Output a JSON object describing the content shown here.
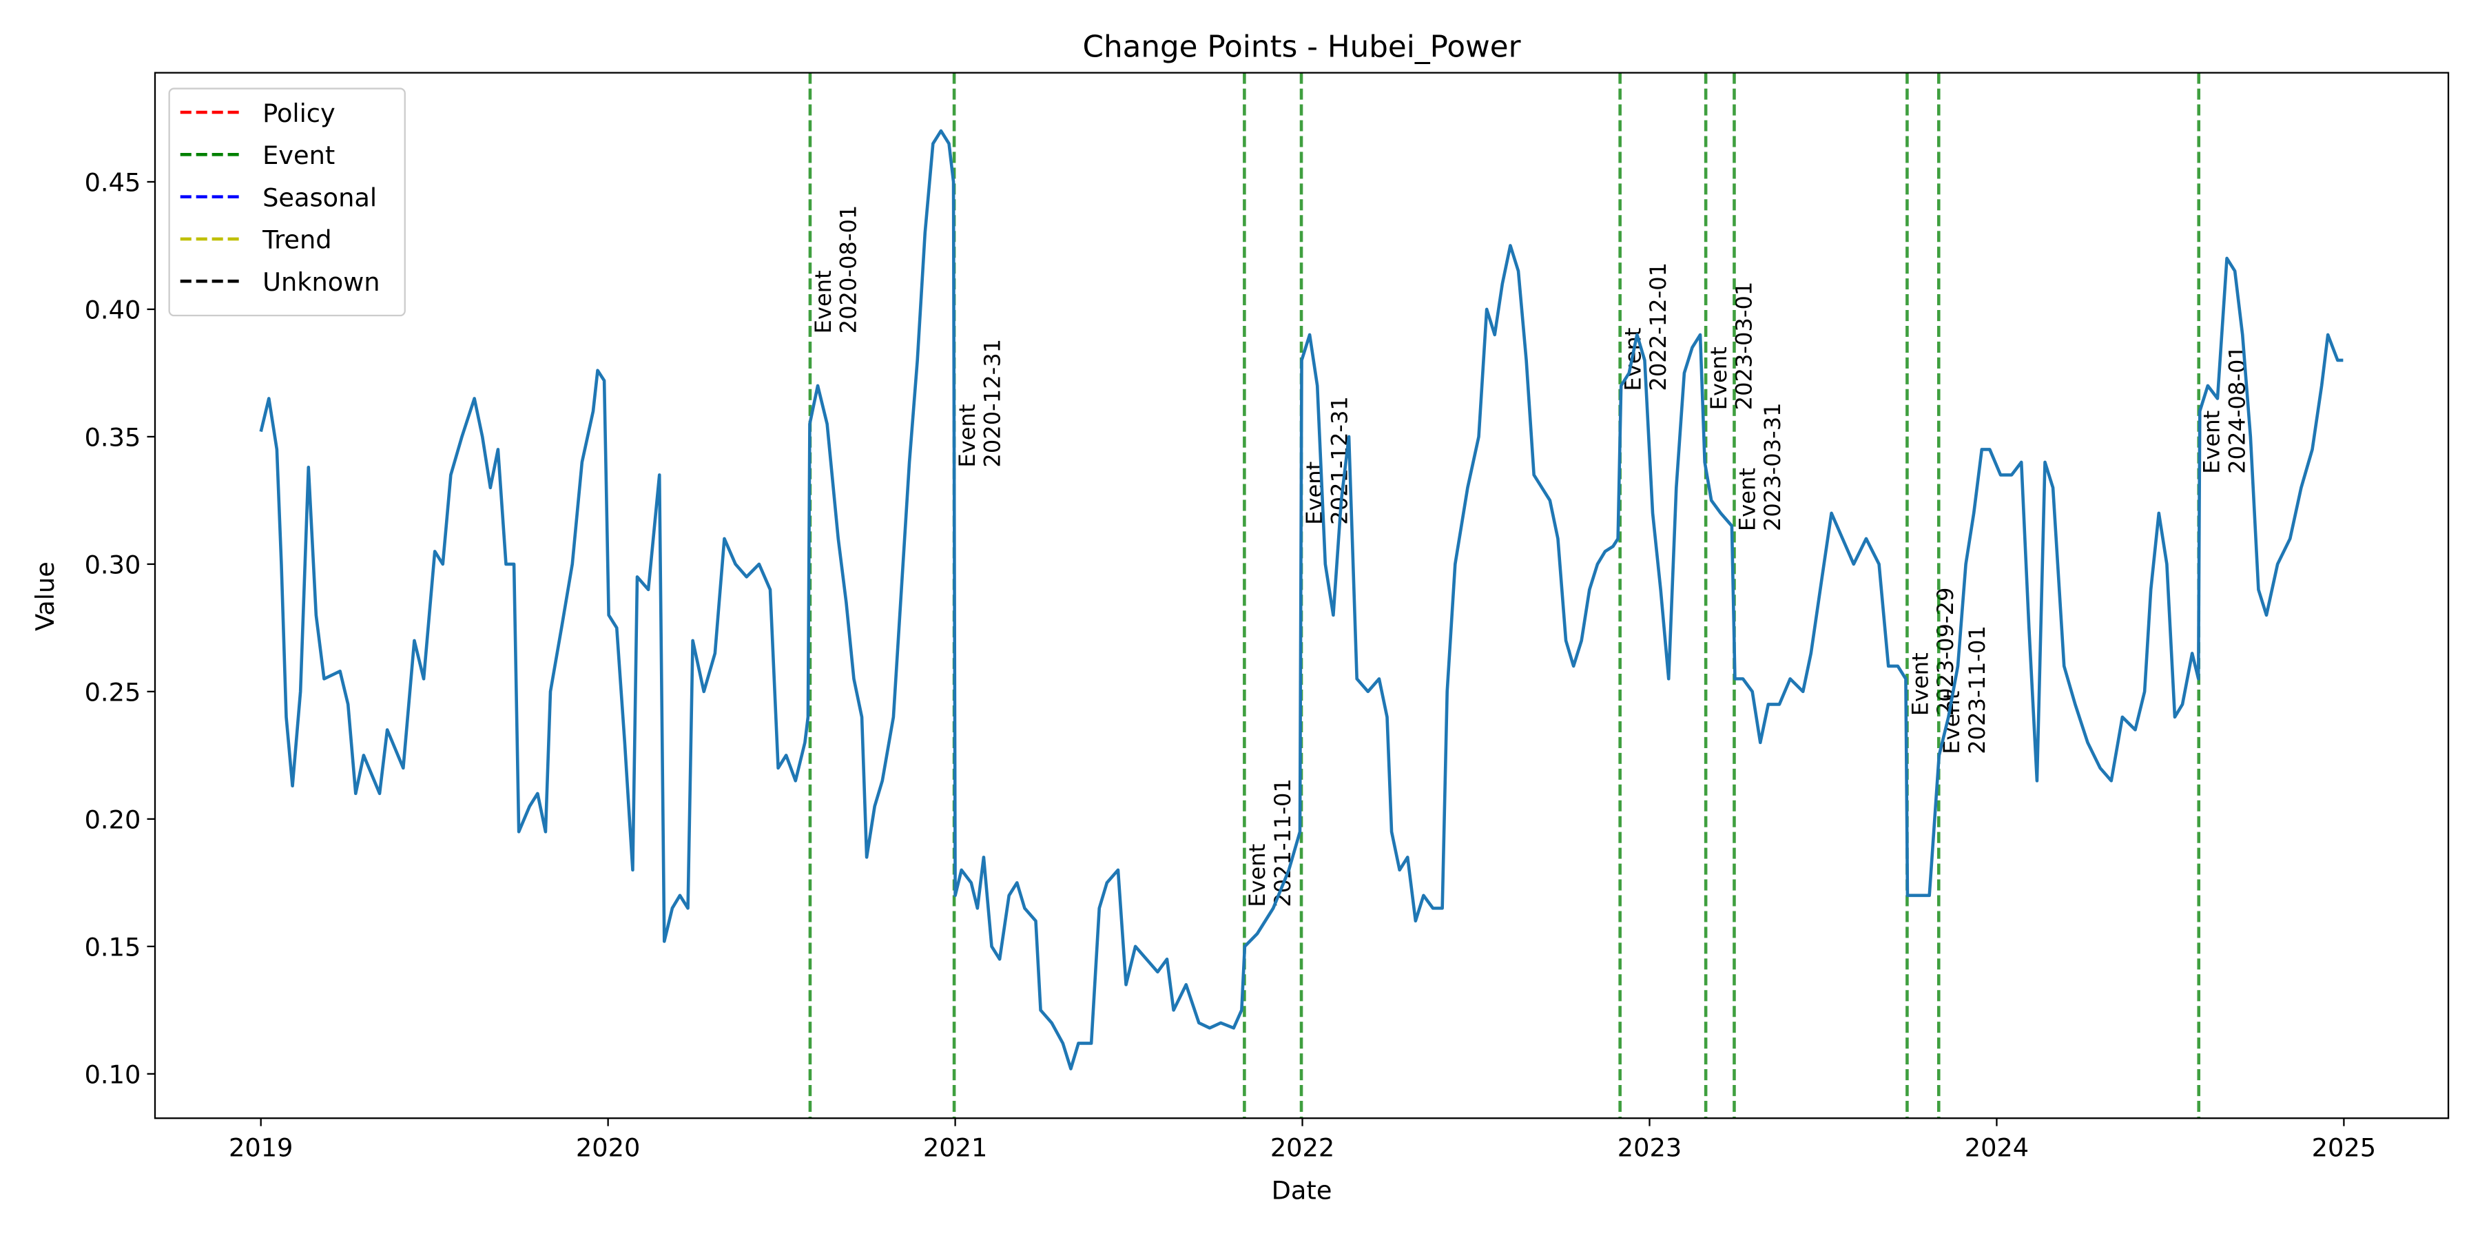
{
  "chart_data": {
    "type": "line",
    "title": "Change Points - Hubei_Power",
    "x_label": "Date",
    "y_label": "Value",
    "color": "#1f77b4",
    "xlim": [
      2018.695,
      2025.301
    ],
    "xticks": [
      2019,
      2020,
      2021,
      2022,
      2023,
      2024,
      2025
    ],
    "ylim": [
      0.0826,
      0.4928
    ],
    "yticks": [
      {
        "value": 0.1,
        "label": "0.10"
      },
      0.15,
      {
        "value": 0.2,
        "label": "0.20"
      },
      0.25,
      {
        "value": 0.3,
        "label": "0.30"
      },
      0.35,
      {
        "value": 0.4,
        "label": "0.40"
      },
      0.45
    ],
    "grid": false,
    "x": [
      2019.0,
      2019.023,
      2019.046,
      2019.059,
      2019.073,
      2019.091,
      2019.114,
      2019.137,
      2019.159,
      2019.182,
      2019.228,
      2019.251,
      2019.273,
      2019.296,
      2019.342,
      2019.364,
      2019.41,
      2019.442,
      2019.469,
      2019.501,
      2019.524,
      2019.547,
      2019.579,
      2019.615,
      2019.638,
      2019.661,
      2019.683,
      2019.706,
      2019.729,
      2019.743,
      2019.774,
      2019.797,
      2019.82,
      2019.834,
      2019.866,
      2019.897,
      2019.925,
      2019.957,
      2019.97,
      2019.989,
      2020.002,
      2020.025,
      2020.048,
      2020.071,
      2020.084,
      2020.116,
      2020.148,
      2020.162,
      2020.185,
      2020.207,
      2020.23,
      2020.244,
      2020.276,
      2020.308,
      2020.335,
      2020.367,
      2020.399,
      2020.435,
      2020.467,
      2020.49,
      2020.513,
      2020.54,
      2020.567,
      2020.576,
      2020.581,
      2020.604,
      2020.631,
      2020.663,
      2020.686,
      2020.708,
      2020.731,
      2020.745,
      2020.768,
      2020.79,
      2020.822,
      2020.845,
      2020.868,
      2020.891,
      2020.913,
      2020.936,
      2020.959,
      2020.982,
      2020.995,
      2021.0,
      2021.018,
      2021.046,
      2021.064,
      2021.082,
      2021.105,
      2021.128,
      2021.155,
      2021.178,
      2021.2,
      2021.232,
      2021.246,
      2021.278,
      2021.31,
      2021.333,
      2021.355,
      2021.392,
      2021.415,
      2021.437,
      2021.469,
      2021.492,
      2021.519,
      2021.551,
      2021.583,
      2021.61,
      2021.629,
      2021.665,
      2021.702,
      2021.733,
      2021.765,
      2021.802,
      2021.825,
      2021.834,
      2021.87,
      2021.916,
      2021.961,
      2021.993,
      2021.998,
      2022.021,
      2022.043,
      2022.066,
      2022.089,
      2022.112,
      2022.134,
      2022.157,
      2022.189,
      2022.221,
      2022.244,
      2022.257,
      2022.28,
      2022.303,
      2022.326,
      2022.349,
      2022.376,
      2022.403,
      2022.417,
      2022.44,
      2022.476,
      2022.508,
      2022.531,
      2022.554,
      2022.576,
      2022.599,
      2022.622,
      2022.645,
      2022.667,
      2022.69,
      2022.713,
      2022.736,
      2022.759,
      2022.781,
      2022.804,
      2022.827,
      2022.85,
      2022.872,
      2022.895,
      2022.909,
      2022.918,
      2022.941,
      2022.964,
      2022.986,
      2023.009,
      2023.032,
      2023.055,
      2023.077,
      2023.1,
      2023.123,
      2023.146,
      2023.159,
      2023.178,
      2023.205,
      2023.237,
      2023.246,
      2023.269,
      2023.296,
      2023.319,
      2023.342,
      2023.374,
      2023.405,
      2023.442,
      2023.465,
      2023.497,
      2023.524,
      2023.556,
      2023.588,
      2023.624,
      2023.661,
      2023.688,
      2023.715,
      2023.738,
      2023.743,
      2023.77,
      2023.806,
      2023.834,
      2023.861,
      2023.888,
      2023.911,
      2023.934,
      2023.957,
      2023.98,
      2024.011,
      2024.043,
      2024.071,
      2024.093,
      2024.116,
      2024.139,
      2024.162,
      2024.194,
      2024.226,
      2024.262,
      2024.298,
      2024.33,
      2024.362,
      2024.399,
      2024.426,
      2024.444,
      2024.467,
      2024.49,
      2024.513,
      2024.535,
      2024.563,
      2024.581,
      2024.585,
      2024.608,
      2024.636,
      2024.663,
      2024.686,
      2024.708,
      2024.731,
      2024.754,
      2024.777,
      2024.809,
      2024.845,
      2024.877,
      2024.909,
      2024.936,
      2024.954,
      2024.982,
      2024.998
    ],
    "values": [
      0.352,
      0.365,
      0.345,
      0.3,
      0.24,
      0.213,
      0.25,
      0.338,
      0.28,
      0.255,
      0.258,
      0.245,
      0.21,
      0.225,
      0.21,
      0.235,
      0.22,
      0.27,
      0.255,
      0.305,
      0.3,
      0.335,
      0.35,
      0.365,
      0.35,
      0.33,
      0.345,
      0.3,
      0.3,
      0.195,
      0.205,
      0.21,
      0.195,
      0.25,
      0.275,
      0.3,
      0.34,
      0.36,
      0.376,
      0.372,
      0.28,
      0.275,
      0.23,
      0.18,
      0.295,
      0.29,
      0.335,
      0.152,
      0.165,
      0.17,
      0.165,
      0.27,
      0.25,
      0.265,
      0.31,
      0.3,
      0.295,
      0.3,
      0.29,
      0.22,
      0.225,
      0.215,
      0.23,
      0.24,
      0.355,
      0.37,
      0.355,
      0.31,
      0.285,
      0.255,
      0.24,
      0.185,
      0.205,
      0.215,
      0.24,
      0.29,
      0.34,
      0.38,
      0.43,
      0.465,
      0.47,
      0.465,
      0.45,
      0.17,
      0.18,
      0.175,
      0.165,
      0.185,
      0.15,
      0.145,
      0.17,
      0.175,
      0.165,
      0.16,
      0.125,
      0.12,
      0.112,
      0.102,
      0.112,
      0.112,
      0.165,
      0.175,
      0.18,
      0.135,
      0.15,
      0.145,
      0.14,
      0.145,
      0.125,
      0.135,
      0.12,
      0.118,
      0.12,
      0.118,
      0.125,
      0.15,
      0.155,
      0.165,
      0.18,
      0.195,
      0.38,
      0.39,
      0.37,
      0.3,
      0.28,
      0.325,
      0.35,
      0.255,
      0.25,
      0.255,
      0.24,
      0.195,
      0.18,
      0.185,
      0.16,
      0.17,
      0.165,
      0.165,
      0.25,
      0.3,
      0.33,
      0.35,
      0.4,
      0.39,
      0.41,
      0.425,
      0.415,
      0.38,
      0.335,
      0.33,
      0.325,
      0.31,
      0.27,
      0.26,
      0.27,
      0.29,
      0.3,
      0.305,
      0.307,
      0.31,
      0.37,
      0.375,
      0.39,
      0.38,
      0.32,
      0.29,
      0.255,
      0.33,
      0.375,
      0.385,
      0.39,
      0.34,
      0.325,
      0.32,
      0.315,
      0.255,
      0.255,
      0.25,
      0.23,
      0.245,
      0.245,
      0.255,
      0.25,
      0.265,
      0.295,
      0.32,
      0.31,
      0.3,
      0.31,
      0.3,
      0.26,
      0.26,
      0.255,
      0.17,
      0.17,
      0.17,
      0.225,
      0.24,
      0.26,
      0.3,
      0.32,
      0.345,
      0.345,
      0.335,
      0.335,
      0.34,
      0.275,
      0.215,
      0.34,
      0.33,
      0.26,
      0.245,
      0.23,
      0.22,
      0.215,
      0.24,
      0.235,
      0.25,
      0.29,
      0.32,
      0.3,
      0.24,
      0.245,
      0.265,
      0.255,
      0.36,
      0.37,
      0.365,
      0.42,
      0.415,
      0.39,
      0.35,
      0.29,
      0.28,
      0.3,
      0.31,
      0.33,
      0.345,
      0.37,
      0.39,
      0.38,
      0.38
    ],
    "change_points": [
      {
        "type": "Event",
        "date": "2020-08-01",
        "x": 2020.582
      },
      {
        "type": "Event",
        "date": "2020-12-31",
        "x": 2020.997
      },
      {
        "type": "Event",
        "date": "2021-11-01",
        "x": 2021.833
      },
      {
        "type": "Event",
        "date": "2021-12-31",
        "x": 2021.997
      },
      {
        "type": "Event",
        "date": "2022-12-01",
        "x": 2022.915
      },
      {
        "type": "Event",
        "date": "2023-03-01",
        "x": 2023.162
      },
      {
        "type": "Event",
        "date": "2023-03-31",
        "x": 2023.244
      },
      {
        "type": "Event",
        "date": "2023-09-29",
        "x": 2023.742
      },
      {
        "type": "Event",
        "date": "2023-11-01",
        "x": 2023.833
      },
      {
        "type": "Event",
        "date": "2024-08-01",
        "x": 2024.582
      }
    ],
    "legend": {
      "loc": "upper left",
      "entries": [
        {
          "name": "Policy",
          "color": "#ff0000"
        },
        {
          "name": "Event",
          "color": "#008000"
        },
        {
          "name": "Seasonal",
          "color": "#0000ff"
        },
        {
          "name": "Trend",
          "color": "#bfbf00"
        },
        {
          "name": "Unknown",
          "color": "#000000"
        }
      ]
    }
  }
}
